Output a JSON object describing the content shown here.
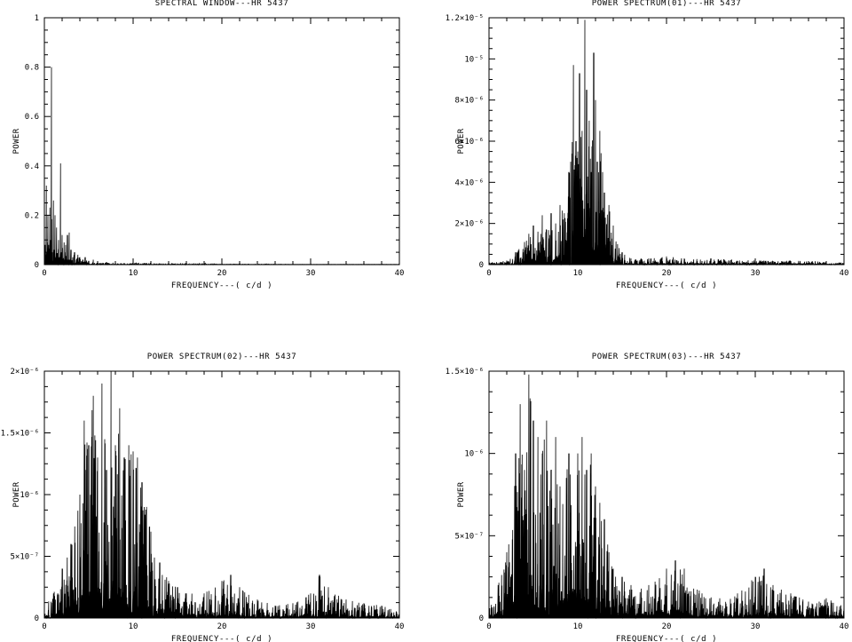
{
  "chart_data": [
    {
      "type": "line",
      "title": "SPECTRAL WINDOW---HR 5437",
      "xlabel": "FREQUENCY---( c/d )",
      "ylabel": "POWER",
      "xlim": [
        0,
        40
      ],
      "ylim": [
        0,
        1
      ],
      "x_ticks": [
        0,
        10,
        20,
        30,
        40
      ],
      "x_tick_labels": [
        "0",
        "10",
        "20",
        "30",
        "40"
      ],
      "y_ticks": [
        0,
        0.2,
        0.4,
        0.6,
        0.8,
        1
      ],
      "y_tick_labels": [
        "0",
        "0.2",
        "0.4",
        "0.6",
        "0.8",
        "1"
      ],
      "series": [
        {
          "x": [
            0,
            0.1,
            0.2,
            0.3,
            0.4,
            0.5,
            0.6,
            0.7,
            0.8,
            0.9,
            1.0,
            1.1,
            1.2,
            1.3,
            1.4,
            1.5,
            1.6,
            1.7,
            1.8,
            1.9,
            2.0,
            2.1,
            2.2,
            2.3,
            2.4,
            2.5,
            2.6,
            2.7,
            2.8,
            2.9,
            3.0,
            3.2,
            3.4,
            3.6,
            3.8,
            4.0,
            4.3,
            4.6,
            5.0,
            5.5,
            6.0,
            7.0,
            8.0,
            9.0,
            10.0,
            12.0,
            14.0,
            16.0,
            18.0,
            20.0,
            25.0,
            30.0,
            35.0,
            40.0
          ],
          "y": [
            0.31,
            0.08,
            0.32,
            0.05,
            0.2,
            0.08,
            0.28,
            0.1,
            0.8,
            0.05,
            0.26,
            0.06,
            0.2,
            0.03,
            0.15,
            0.04,
            0.1,
            0.03,
            0.41,
            0.05,
            0.12,
            0.02,
            0.09,
            0.02,
            0.08,
            0.02,
            0.12,
            0.02,
            0.13,
            0.02,
            0.06,
            0.03,
            0.05,
            0.02,
            0.04,
            0.03,
            0.02,
            0.03,
            0.015,
            0.02,
            0.01,
            0.01,
            0.008,
            0.006,
            0.01,
            0.005,
            0.004,
            0.003,
            0.004,
            0.002,
            0.002,
            0.001,
            0.001,
            0.001
          ]
        }
      ]
    },
    {
      "type": "line",
      "title": "POWER SPECTRUM(01)---HR 5437",
      "xlabel": "FREQUENCY---( c/d )",
      "ylabel": "POWER",
      "xlim": [
        0,
        40
      ],
      "ylim": [
        0,
        1.2e-05
      ],
      "x_ticks": [
        0,
        10,
        20,
        30,
        40
      ],
      "x_tick_labels": [
        "0",
        "10",
        "20",
        "30",
        "40"
      ],
      "y_ticks": [
        0,
        2e-06,
        4e-06,
        6e-06,
        8e-06,
        1e-05,
        1.2e-05
      ],
      "y_tick_labels": [
        "0",
        "2×10⁻⁶",
        "4×10⁻⁶",
        "6×10⁻⁶",
        "8×10⁻⁶",
        "10⁻⁵",
        "1.2×10⁻⁵"
      ],
      "series": [
        {
          "x": [
            0,
            2.0,
            3.0,
            4.0,
            4.5,
            5.0,
            5.5,
            6.0,
            6.5,
            7.0,
            7.5,
            8.0,
            8.5,
            9.0,
            9.2,
            9.5,
            9.8,
            10.0,
            10.2,
            10.5,
            10.8,
            11.0,
            11.3,
            11.5,
            11.8,
            12.0,
            12.2,
            12.5,
            12.8,
            13.0,
            13.5,
            14.0,
            14.5,
            15.0,
            16.0,
            18.0,
            20.0,
            22.0,
            25.0,
            30.0,
            35.0,
            40.0
          ],
          "y": [
            1e-07,
            2e-07,
            6e-07,
            1.1e-06,
            1.5e-06,
            1.9e-06,
            1.6e-06,
            2.4e-06,
            1.7e-06,
            2.5e-06,
            2e-06,
            2.9e-06,
            2.5e-06,
            4.5e-06,
            5e-06,
            9.7e-06,
            6e-06,
            5.5e-06,
            9.3e-06,
            6.5e-06,
            1.19e-05,
            8.5e-06,
            7e-06,
            4.5e-06,
            1.03e-05,
            8e-06,
            5e-06,
            6.5e-06,
            4.5e-06,
            3.5e-06,
            2.9e-06,
            1.9e-06,
            1e-06,
            6e-07,
            3e-07,
            3e-07,
            4e-07,
            3e-07,
            3e-07,
            2e-07,
            2e-07,
            1e-07
          ]
        }
      ]
    },
    {
      "type": "line",
      "title": "POWER SPECTRUM(02)---HR 5437",
      "xlabel": "FREQUENCY---( c/d )",
      "ylabel": "POWER",
      "xlim": [
        0,
        40
      ],
      "ylim": [
        0,
        2e-06
      ],
      "x_ticks": [
        0,
        10,
        20,
        30,
        40
      ],
      "x_tick_labels": [
        "0",
        "10",
        "20",
        "30",
        "40"
      ],
      "y_ticks": [
        0,
        5e-07,
        1e-06,
        1.5e-06,
        2e-06
      ],
      "y_tick_labels": [
        "0",
        "5×10⁻⁷",
        "10⁻⁶",
        "1.5×10⁻⁶",
        "2×10⁻⁶"
      ],
      "series": [
        {
          "x": [
            0,
            1.0,
            2.0,
            3.0,
            4.0,
            4.5,
            5.0,
            5.5,
            6.0,
            6.5,
            7.0,
            7.5,
            8.0,
            8.5,
            9.0,
            9.5,
            10.0,
            10.5,
            11.0,
            11.5,
            12.0,
            13.0,
            14.0,
            15.0,
            16.0,
            18.0,
            20.0,
            21.0,
            22.0,
            24.0,
            26.0,
            28.0,
            30.0,
            31.0,
            32.0,
            34.0,
            36.0,
            38.0,
            40.0
          ],
          "y": [
            1e-07,
            2e-07,
            4e-07,
            6e-07,
            1e-06,
            1.6e-06,
            1.4e-06,
            1.8e-06,
            1.3e-06,
            1.9e-06,
            1.2e-06,
            2e-06,
            1.4e-06,
            1.7e-06,
            1.3e-06,
            1.4e-06,
            1.35e-06,
            1.3e-06,
            1.1e-06,
            9e-07,
            7e-07,
            4.5e-07,
            3e-07,
            2.5e-07,
            2e-07,
            2e-07,
            3e-07,
            3.5e-07,
            2.5e-07,
            1.5e-07,
            1e-07,
            1.2e-07,
            2e-07,
            3.5e-07,
            2.5e-07,
            1.5e-07,
            1.2e-07,
            1e-07,
            5e-08
          ]
        }
      ]
    },
    {
      "type": "line",
      "title": "POWER SPECTRUM(03)---HR 5437",
      "xlabel": "FREQUENCY---( c/d )",
      "ylabel": "POWER",
      "xlim": [
        0,
        40
      ],
      "ylim": [
        0,
        1.5e-06
      ],
      "x_ticks": [
        0,
        10,
        20,
        30,
        40
      ],
      "x_tick_labels": [
        "0",
        "10",
        "20",
        "30",
        "40"
      ],
      "y_ticks": [
        0,
        5e-07,
        1e-06,
        1.5e-06
      ],
      "y_tick_labels": [
        "0",
        "5×10⁻⁷",
        "10⁻⁶",
        "1.5×10⁻⁶"
      ],
      "series": [
        {
          "x": [
            0,
            1.0,
            2.0,
            3.0,
            3.5,
            4.0,
            4.5,
            5.0,
            5.5,
            6.0,
            6.5,
            7.0,
            7.5,
            8.0,
            9.0,
            10.0,
            10.5,
            11.0,
            11.5,
            12.0,
            12.5,
            13.0,
            13.5,
            14.0,
            15.0,
            16.0,
            18.0,
            20.0,
            21.0,
            22.0,
            24.0,
            26.0,
            28.0,
            30.0,
            31.0,
            32.0,
            34.0,
            36.0,
            38.0,
            40.0
          ],
          "y": [
            1e-07,
            2e-07,
            4e-07,
            1e-06,
            1.3e-06,
            9e-07,
            1.48e-06,
            1.2e-06,
            1.1e-06,
            1e-06,
            1.2e-06,
            9e-07,
            1.1e-06,
            8e-07,
            1e-06,
            1e-06,
            1.1e-06,
            9e-07,
            1e-06,
            8e-07,
            7e-07,
            6e-07,
            4e-07,
            3e-07,
            2.5e-07,
            2e-07,
            2e-07,
            3e-07,
            3.5e-07,
            3e-07,
            1.5e-07,
            1.2e-07,
            1.5e-07,
            2.5e-07,
            3e-07,
            2e-07,
            1.5e-07,
            1e-07,
            1.2e-07,
            8e-08
          ]
        }
      ]
    }
  ]
}
